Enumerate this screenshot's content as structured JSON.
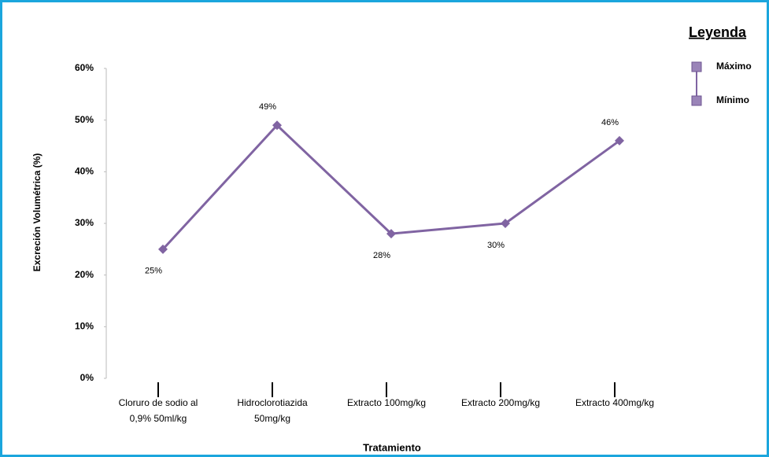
{
  "chart_data": {
    "type": "line",
    "y_label": "Excreción Volumétrica (%)",
    "x_label": "Tratamiento",
    "categories": [
      "Cloruro de sodio al\n0,9% 50ml/kg",
      "Hidroclorotiazida\n50mg/kg",
      "Extracto 100mg/kg",
      "Extracto 200mg/kg",
      "Extracto 400mg/kg"
    ],
    "series": [
      {
        "name": "Excreción Volumétrica",
        "color": "#8064a2",
        "values": [
          25,
          49,
          28,
          30,
          46
        ],
        "value_labels": [
          "25%",
          "49%",
          "28%",
          "30%",
          "46%"
        ]
      }
    ],
    "ylim": [
      0,
      60
    ],
    "yticks": [
      {
        "value": 0,
        "label": "0%"
      },
      {
        "value": 10,
        "label": "10%"
      },
      {
        "value": 20,
        "label": "20%"
      },
      {
        "value": 30,
        "label": "30%"
      },
      {
        "value": 40,
        "label": "40%"
      },
      {
        "value": 50,
        "label": "50%"
      },
      {
        "value": 60,
        "label": "60%"
      }
    ],
    "legend": {
      "title": "Leyenda",
      "high": "Máximo",
      "low": "Mínimo"
    }
  }
}
